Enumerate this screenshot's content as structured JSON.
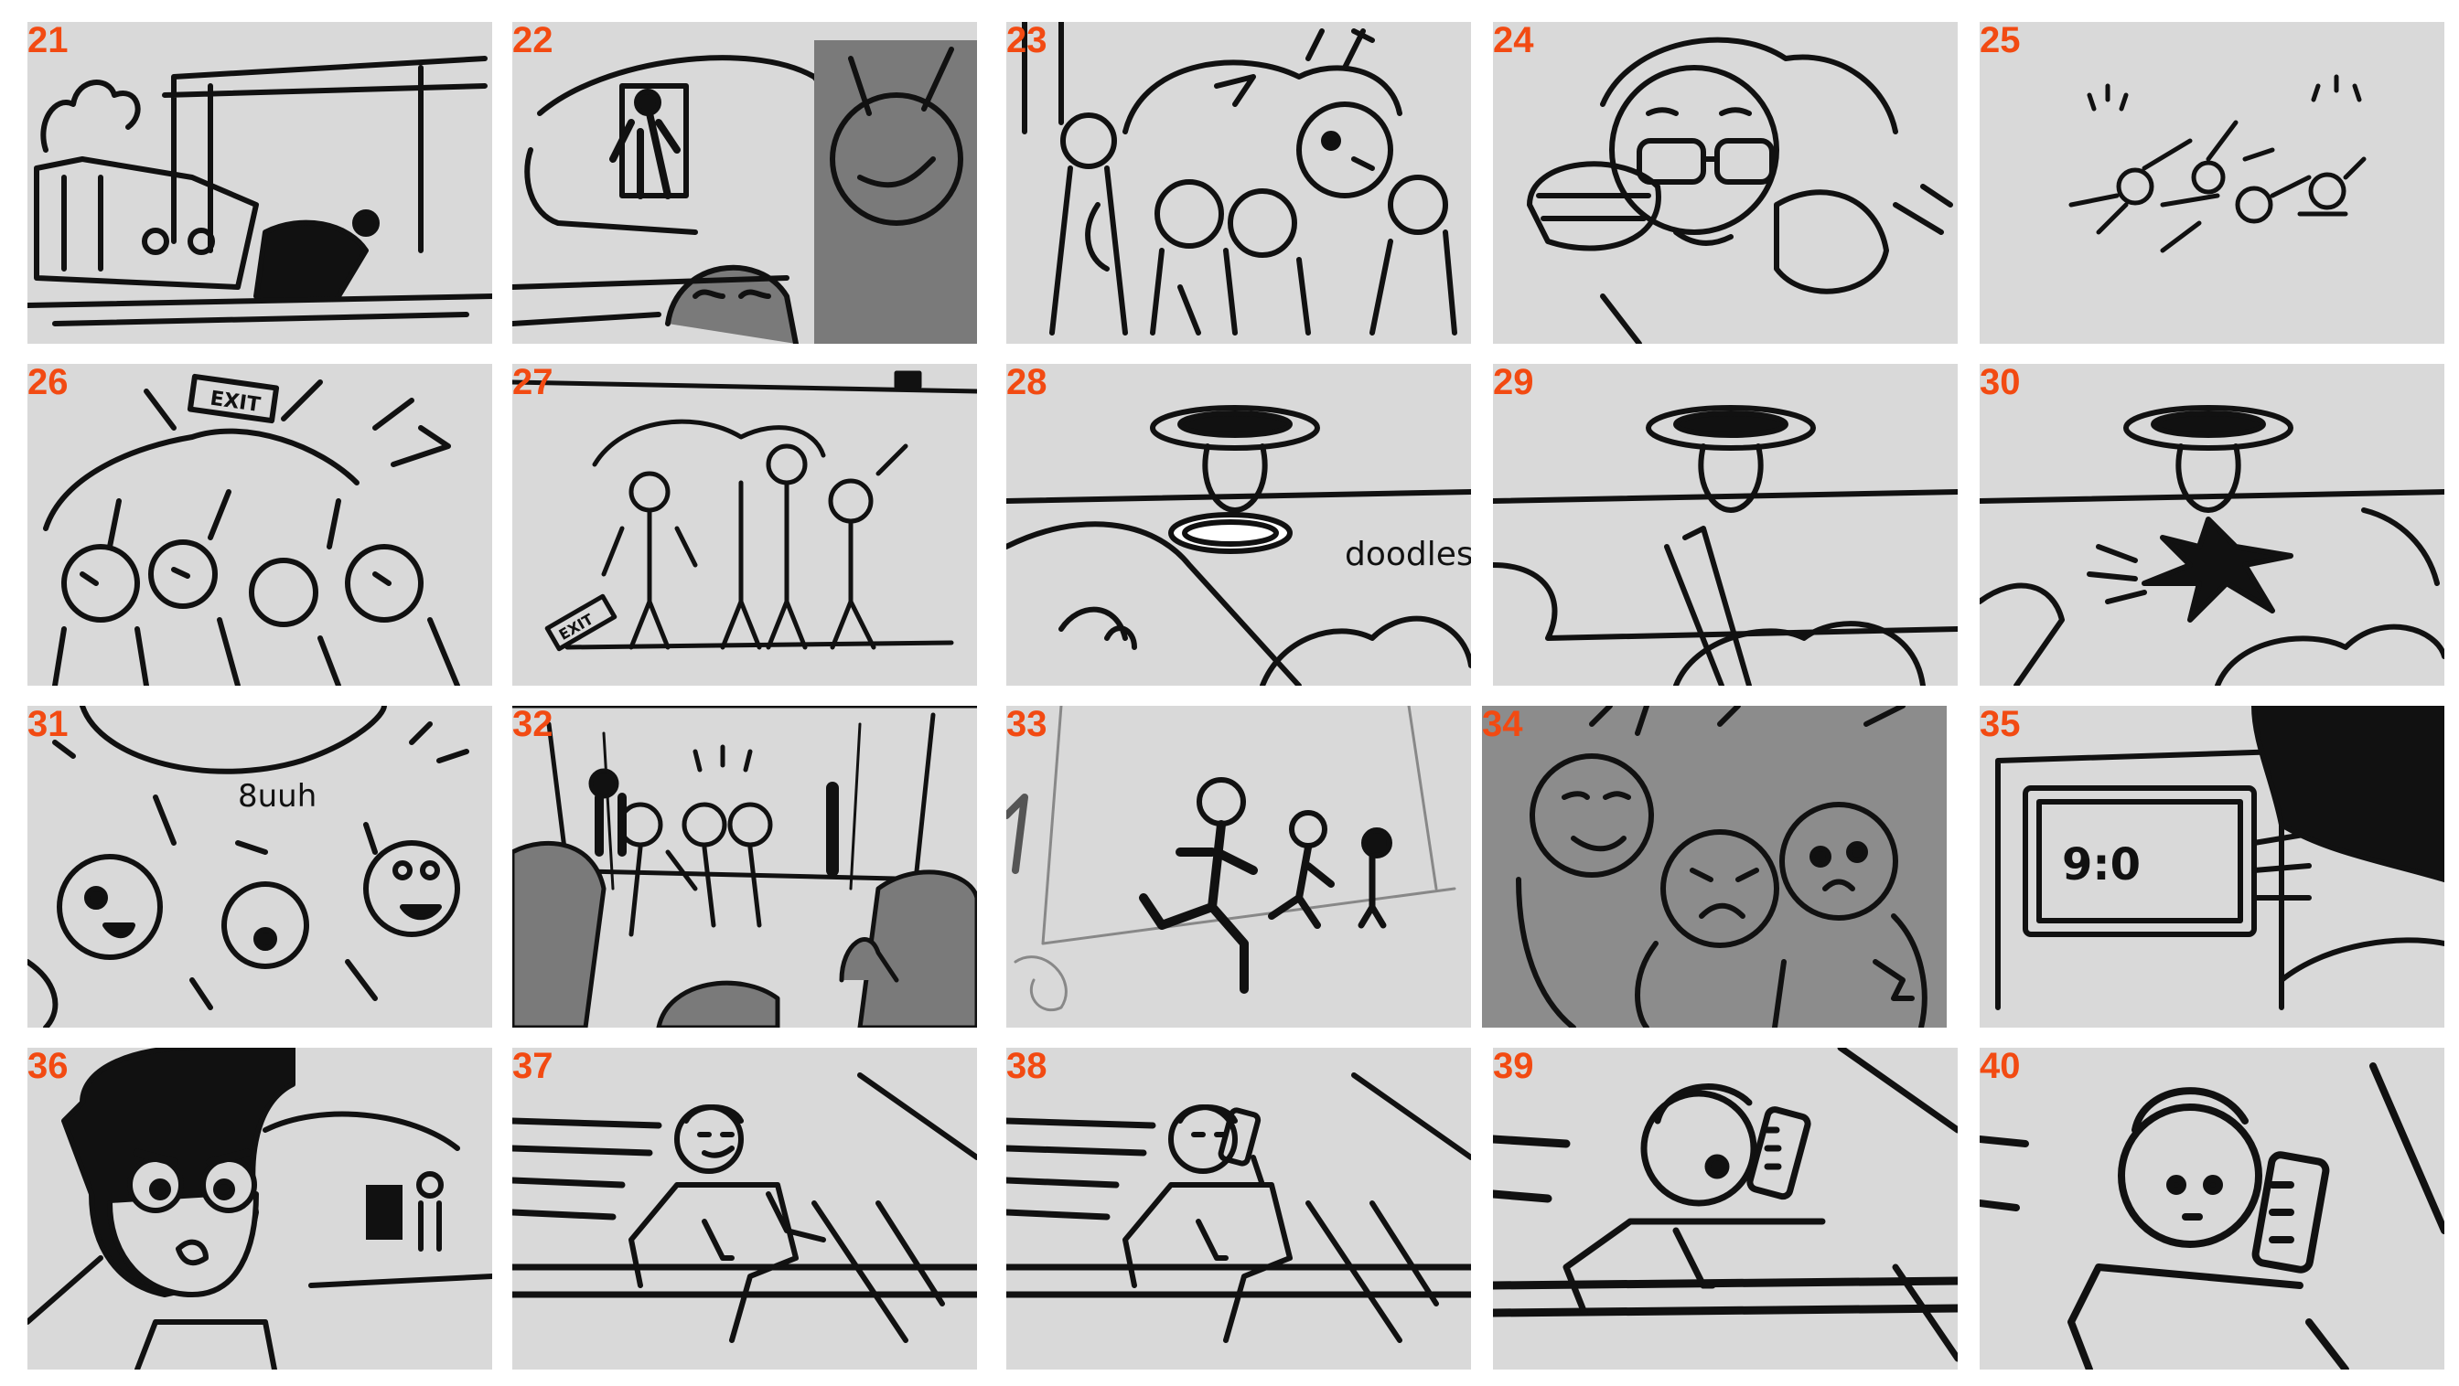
{
  "accent_color": "#f24a12",
  "panel_bg": "#d9d9d9",
  "panels": [
    {
      "n": "21"
    },
    {
      "n": "22"
    },
    {
      "n": "23"
    },
    {
      "n": "24"
    },
    {
      "n": "25"
    },
    {
      "n": "26",
      "sign": "EXIT"
    },
    {
      "n": "27",
      "sign": "EXIT"
    },
    {
      "n": "28",
      "caption": "doodles"
    },
    {
      "n": "29"
    },
    {
      "n": "30"
    },
    {
      "n": "31",
      "caption": "8uuh"
    },
    {
      "n": "32"
    },
    {
      "n": "33"
    },
    {
      "n": "34"
    },
    {
      "n": "35",
      "screen": "9:0"
    },
    {
      "n": "36"
    },
    {
      "n": "37"
    },
    {
      "n": "38"
    },
    {
      "n": "39"
    },
    {
      "n": "40"
    }
  ]
}
